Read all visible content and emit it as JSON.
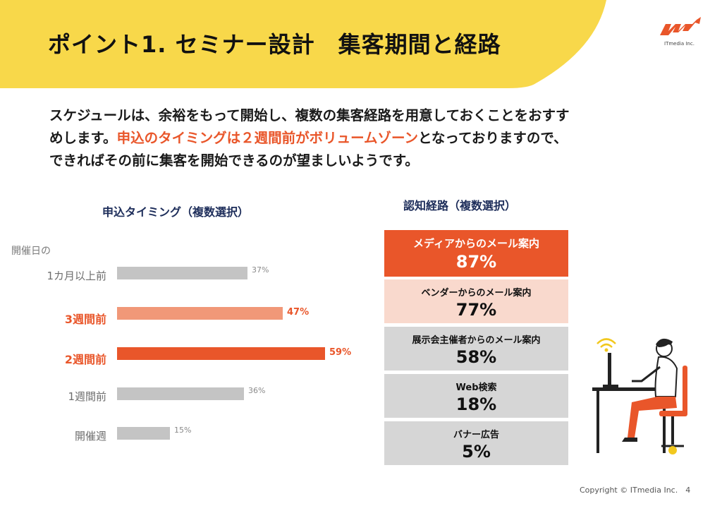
{
  "header": {
    "title": "ポイント1. セミナー設計　集客期間と経路",
    "logo_text": "ITmedia Inc."
  },
  "lead": {
    "line1": "スケジュールは、余裕をもって開始し、複数の集客経路を用意しておくことをおすす",
    "line2_a": "めします。",
    "line2_highlight": "申込のタイミングは２週間前がボリュームゾーン",
    "line2_b": "となっておりますので、",
    "line3": "できればその前に集客を開始できるのが望ましいようです。"
  },
  "left_chart": {
    "title": "申込タイミング（複数選択）",
    "axis_note": "開催日の"
  },
  "right_chart": {
    "title": "認知経路（複数選択）"
  },
  "colors": {
    "banner": "#f8d84a",
    "accent": "#e9562a",
    "accent_light": "#f19878",
    "grey_bar": "#c4c4c4",
    "box_top": "#e9562a",
    "box_second": "#f9d9cd",
    "box_grey": "#d6d6d6"
  },
  "chart_data": [
    {
      "type": "bar",
      "title": "申込タイミング（複数選択）",
      "categories": [
        "1カ月以上前",
        "3週間前",
        "2週間前",
        "1週間前",
        "開催週"
      ],
      "values": [
        37,
        47,
        59,
        36,
        15
      ],
      "value_labels": [
        "37%",
        "47%",
        "59%",
        "36%",
        "15%"
      ],
      "highlight": [
        false,
        "light",
        "strong",
        false,
        false
      ],
      "ylabel": "",
      "xlim": [
        0,
        100
      ]
    },
    {
      "type": "table",
      "title": "認知経路（複数選択）",
      "categories": [
        "メディアからのメール案内",
        "ベンダーからのメール案内",
        "展示会主催者からのメール案内",
        "Web検索",
        "バナー広告"
      ],
      "values": [
        87,
        77,
        58,
        18,
        5
      ],
      "value_labels": [
        "87%",
        "77%",
        "58%",
        "18%",
        "5%"
      ]
    }
  ],
  "footer": {
    "copyright": "Copyright © ITmedia Inc.",
    "page": "4"
  }
}
